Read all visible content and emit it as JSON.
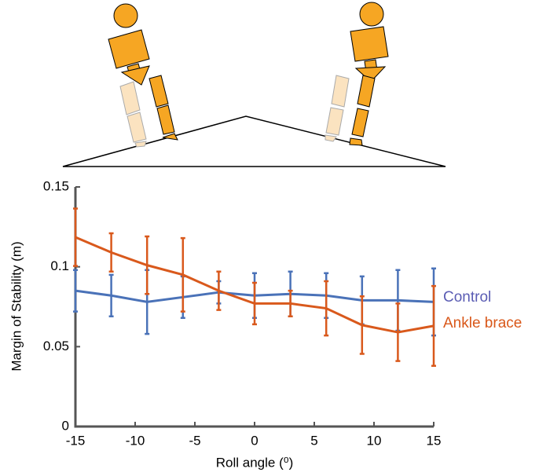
{
  "chart_data": {
    "type": "line",
    "x_label": "Roll angle (⁰)",
    "y_label": "Margin of Stability (m)",
    "x": [
      -15,
      -12,
      -9,
      -6,
      -3,
      0,
      3,
      6,
      9,
      12,
      15
    ],
    "series": [
      {
        "name": "Control",
        "color": "#4a72b8",
        "label_color": "#5b5db4",
        "values": [
          0.085,
          0.082,
          0.078,
          0.081,
          0.084,
          0.082,
          0.083,
          0.082,
          0.079,
          0.079,
          0.078
        ],
        "errors": [
          0.013,
          0.013,
          0.02,
          0.013,
          0.007,
          0.014,
          0.014,
          0.014,
          0.015,
          0.019,
          0.021
        ]
      },
      {
        "name": "Ankle brace",
        "color": "#d9591c",
        "label_color": "#d9581a",
        "values": [
          0.1185,
          0.109,
          0.101,
          0.095,
          0.085,
          0.077,
          0.077,
          0.074,
          0.0635,
          0.059,
          0.063
        ],
        "errors": [
          0.018,
          0.012,
          0.018,
          0.023,
          0.012,
          0.013,
          0.008,
          0.017,
          0.018,
          0.018,
          0.025
        ]
      }
    ],
    "xlim": [
      -15,
      15
    ],
    "xticks": [
      -15,
      -10,
      -5,
      0,
      5,
      10,
      15
    ],
    "ylim": [
      0,
      0.15
    ],
    "yticks": [
      0,
      0.05,
      0.1,
      0.15
    ]
  }
}
